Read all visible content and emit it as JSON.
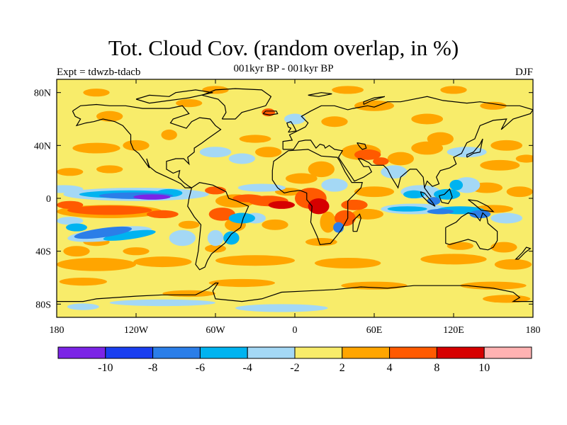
{
  "title": "Tot. Cloud Cov. (random overlap, in %)",
  "subtitle": "001kyr BP - 001kyr BP",
  "left_label": "Expt = tdwzb-tdacb",
  "right_label": "DJF",
  "map": {
    "projection": "cylindrical equidistant",
    "lon_range": [
      -180,
      180
    ],
    "lat_range": [
      -90,
      90
    ],
    "lon_ticks": [
      {
        "value": -180,
        "label": "180"
      },
      {
        "value": -120,
        "label": "120W"
      },
      {
        "value": -60,
        "label": "60W"
      },
      {
        "value": 0,
        "label": "0"
      },
      {
        "value": 60,
        "label": "60E"
      },
      {
        "value": 120,
        "label": "120E"
      },
      {
        "value": 180,
        "label": "180"
      }
    ],
    "lat_ticks": [
      {
        "value": 80,
        "label": "80N"
      },
      {
        "value": 40,
        "label": "40N"
      },
      {
        "value": 0,
        "label": "0"
      },
      {
        "value": -40,
        "label": "40S"
      },
      {
        "value": -80,
        "label": "80S"
      }
    ],
    "background_category": "-2 to 2",
    "regions": [
      {
        "name": "equatorial pacific negative band",
        "lon": [
          -160,
          -75
        ],
        "lat": [
          -1,
          7
        ],
        "bin": "-8 to -6"
      },
      {
        "name": "east pacific minimum",
        "lon": [
          -125,
          -90
        ],
        "lat": [
          0,
          4
        ],
        "bin": "< -10"
      },
      {
        "name": "south pacific positive band",
        "lon": [
          -175,
          -95
        ],
        "lat": [
          -15,
          -5
        ],
        "bin": "4 to 8"
      },
      {
        "name": "south pacific negative band",
        "lon": [
          -170,
          -105
        ],
        "lat": [
          -35,
          -20
        ],
        "bin": "-8 to -6"
      },
      {
        "name": "tropical atlantic positive",
        "lon": [
          -40,
          10
        ],
        "lat": [
          -10,
          5
        ],
        "bin": "4 to 8"
      },
      {
        "name": "africa congo positive",
        "lon": [
          0,
          25
        ],
        "lat": [
          -10,
          10
        ],
        "bin": "4 to 8"
      },
      {
        "name": "indian ocean negative band",
        "lon": [
          70,
          145
        ],
        "lat": [
          -15,
          -7
        ],
        "bin": "-6 to -4"
      },
      {
        "name": "southeast asia negative",
        "lon": [
          95,
          125
        ],
        "lat": [
          -2,
          12
        ],
        "bin": "-6 to -4"
      },
      {
        "name": "arabia positive",
        "lon": [
          35,
          75
        ],
        "lat": [
          25,
          40
        ],
        "bin": "4 to 8"
      },
      {
        "name": "southern ocean positive",
        "lon": [
          -180,
          180
        ],
        "lat": [
          -60,
          -45
        ],
        "bin": "2 to 4"
      },
      {
        "name": "antarctic negative",
        "lon": [
          -140,
          40
        ],
        "lat": [
          -85,
          -75
        ],
        "bin": "-4 to -2"
      }
    ]
  },
  "colorbar": {
    "colors": [
      "#7b24e6",
      "#1a3ef0",
      "#2b7ee8",
      "#00b3f0",
      "#a4d8f5",
      "#f8ec6a",
      "#ffa500",
      "#ff5a00",
      "#d60000",
      "#ffb2b2"
    ],
    "labels": [
      "-10",
      "-8",
      "-6",
      "-4",
      "-2",
      "2",
      "4",
      "8",
      "10"
    ]
  }
}
